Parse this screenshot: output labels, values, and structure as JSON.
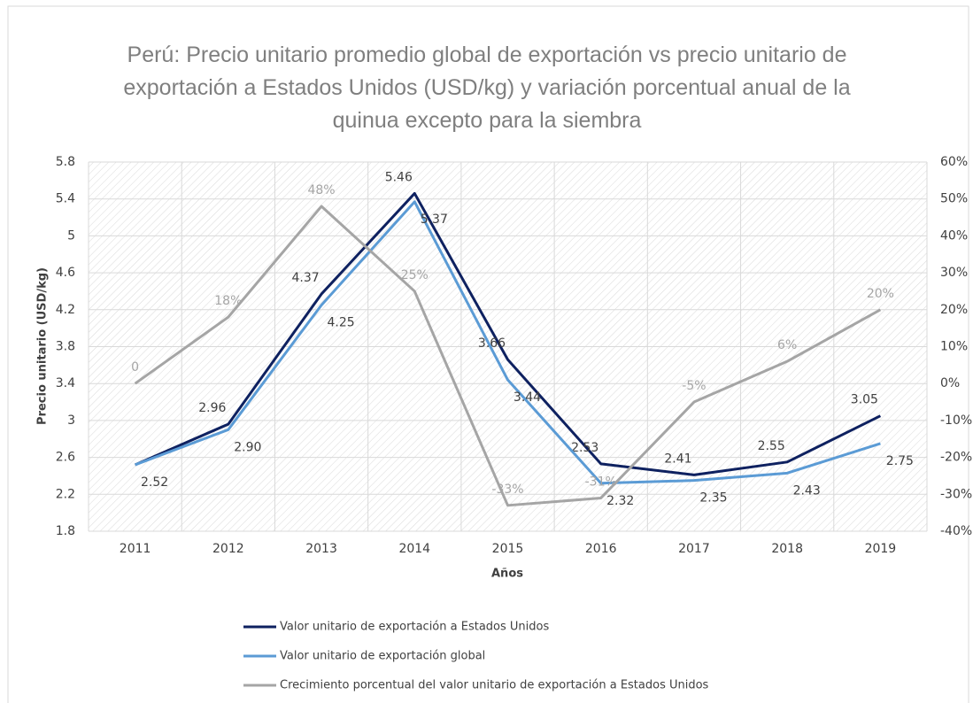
{
  "chart_data": {
    "type": "line",
    "title": "Perú: Precio unitario promedio global de exportación vs precio unitario de exportación a Estados Unidos (USD/kg) y variación porcentual anual de la quinua excepto para la siembra",
    "x_label": "Años",
    "y_label": "Precio unitario (USD/kg)",
    "categories": [
      "2011",
      "2012",
      "2013",
      "2014",
      "2015",
      "2016",
      "2017",
      "2018",
      "2019"
    ],
    "series": [
      {
        "name": "Valor unitario de exportación a Estados Unidos",
        "color": "#0e2160",
        "values": [
          2.52,
          2.96,
          4.37,
          5.46,
          3.66,
          2.53,
          2.41,
          2.55,
          3.05
        ],
        "value_labels": [
          null,
          "2.96",
          "4.37",
          "5.46",
          "3.66",
          "2.53",
          "2.41",
          "2.55",
          "3.05"
        ]
      },
      {
        "name": "Valor unitario de exportación global",
        "color": "#5b9bd5",
        "values": [
          2.52,
          2.9,
          4.25,
          5.37,
          3.44,
          2.32,
          2.35,
          2.43,
          2.75
        ],
        "value_labels": [
          "2.52",
          "2.90",
          "4.25",
          "5.37",
          "3.44",
          "2.32",
          "2.35",
          "2.43",
          "2.75"
        ]
      },
      {
        "name": "Crecimiento porcentual del valor unitario de exportación a Estados Unidos",
        "color": "#a5a5a5",
        "axis": "y2",
        "values": [
          0,
          18,
          48,
          25,
          -33,
          -31,
          -5,
          6,
          20
        ],
        "value_labels": [
          "0",
          "18%",
          "48%",
          "25%",
          "-33%",
          "-31%",
          "-5%",
          "6%",
          "20%"
        ]
      }
    ],
    "ylim": [
      1.8,
      5.8
    ],
    "yticks": [
      1.8,
      2.2,
      2.6,
      3,
      3.4,
      3.8,
      4.2,
      4.6,
      5,
      5.4,
      5.8
    ],
    "y2lim": [
      -40,
      60
    ],
    "y2ticks": [
      {
        "value": -40,
        "label": "-40%"
      },
      {
        "value": -30,
        "label": "-30%"
      },
      {
        "value": -20,
        "label": "-20%"
      },
      {
        "value": -10,
        "label": "-10%"
      },
      {
        "value": 0,
        "label": "0%"
      },
      {
        "value": 10,
        "label": "10%"
      },
      {
        "value": 20,
        "label": "20%"
      },
      {
        "value": 30,
        "label": "30%"
      },
      {
        "value": 40,
        "label": "40%"
      },
      {
        "value": 50,
        "label": "50%"
      },
      {
        "value": 60,
        "label": "60%"
      }
    ],
    "grid": true
  }
}
